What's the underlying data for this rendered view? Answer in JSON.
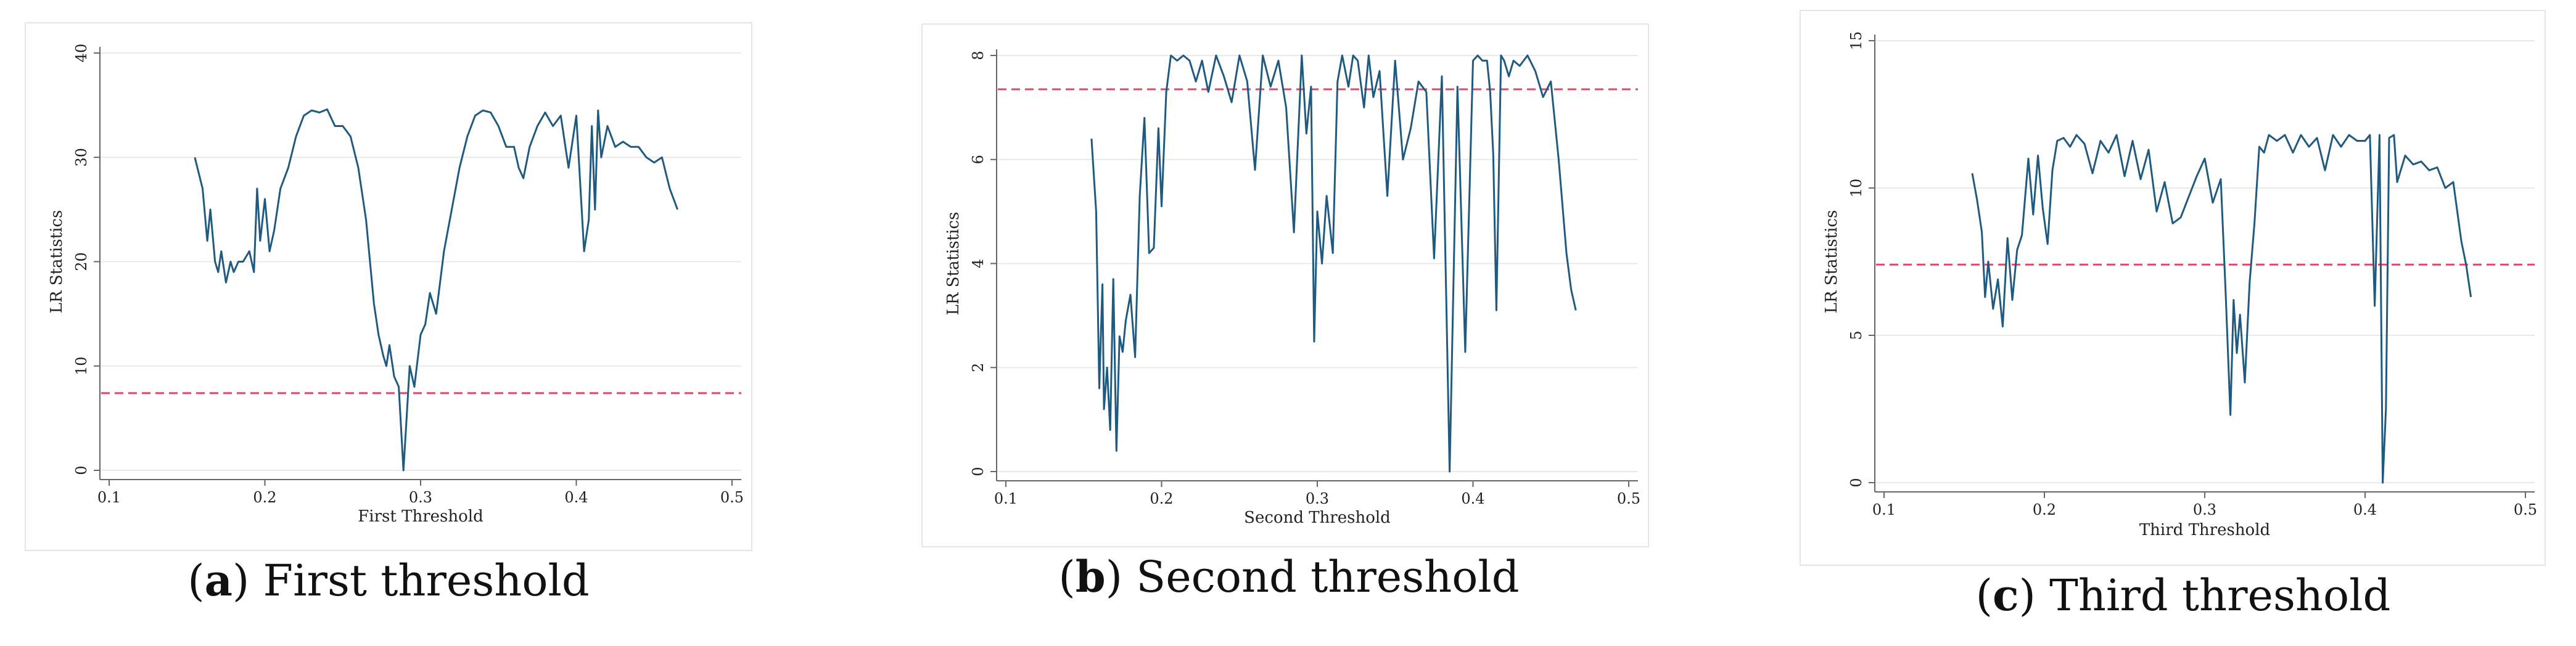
{
  "captions": [
    {
      "letter": "a",
      "text": ") First threshold",
      "open": "("
    },
    {
      "letter": "b",
      "text": ") Second threshold",
      "open": "("
    },
    {
      "letter": "c",
      "text": ") Third threshold",
      "open": "("
    }
  ],
  "colors": {
    "line": "#1f5a80",
    "critical": "#e8456b",
    "grid": "#e9e9e9",
    "axis": "#666666"
  },
  "chart_data": [
    {
      "type": "line",
      "title": "",
      "xlabel": "First Threshold",
      "ylabel": "LR Statistics",
      "xlim": [
        0.1,
        0.5
      ],
      "ylim": [
        0,
        40
      ],
      "xticks": [
        0.1,
        0.2,
        0.3,
        0.4,
        0.5
      ],
      "yticks": [
        0,
        10,
        20,
        30,
        40
      ],
      "critical_value": 7.4,
      "series": [
        {
          "x": [
            0.155,
            0.16,
            0.163,
            0.165,
            0.168,
            0.17,
            0.172,
            0.175,
            0.178,
            0.18,
            0.183,
            0.186,
            0.19,
            0.193,
            0.195,
            0.197,
            0.2,
            0.203,
            0.206,
            0.21,
            0.215,
            0.22,
            0.225,
            0.23,
            0.235,
            0.24,
            0.245,
            0.25,
            0.255,
            0.26,
            0.265,
            0.27,
            0.273,
            0.276,
            0.278,
            0.28,
            0.283,
            0.286,
            0.289,
            0.291,
            0.293,
            0.296,
            0.3,
            0.303,
            0.306,
            0.31,
            0.315,
            0.32,
            0.325,
            0.33,
            0.335,
            0.34,
            0.345,
            0.35,
            0.355,
            0.36,
            0.363,
            0.366,
            0.37,
            0.375,
            0.38,
            0.385,
            0.39,
            0.395,
            0.4,
            0.405,
            0.408,
            0.41,
            0.412,
            0.414,
            0.416,
            0.42,
            0.425,
            0.43,
            0.435,
            0.44,
            0.445,
            0.45,
            0.455,
            0.46,
            0.465
          ],
          "y": [
            30,
            27,
            22,
            25,
            20,
            19,
            21,
            18,
            20,
            19,
            20,
            20,
            21,
            19,
            27,
            22,
            26,
            21,
            23,
            27,
            29,
            32,
            34,
            34.5,
            34.3,
            34.6,
            33,
            33,
            32,
            29,
            24,
            16,
            13,
            11,
            10,
            12,
            9,
            8,
            0,
            5,
            10,
            8,
            13,
            14,
            17,
            15,
            21,
            25,
            29,
            32,
            34,
            34.5,
            34.3,
            33,
            31,
            31,
            29,
            28,
            31,
            33,
            34.3,
            33,
            34,
            29,
            34,
            21,
            24,
            33,
            25,
            34.5,
            30,
            33,
            31,
            31.5,
            31,
            31,
            30,
            29.5,
            30,
            27,
            25
          ]
        }
      ]
    },
    {
      "type": "line",
      "title": "",
      "xlabel": "Second Threshold",
      "ylabel": "LR Statistics",
      "xlim": [
        0.1,
        0.5
      ],
      "ylim": [
        0,
        8
      ],
      "xticks": [
        0.1,
        0.2,
        0.3,
        0.4,
        0.5
      ],
      "yticks": [
        0,
        2,
        4,
        6,
        8
      ],
      "critical_value": 7.35,
      "series": [
        {
          "x": [
            0.155,
            0.158,
            0.16,
            0.162,
            0.163,
            0.165,
            0.167,
            0.169,
            0.171,
            0.173,
            0.175,
            0.177,
            0.18,
            0.183,
            0.186,
            0.189,
            0.192,
            0.195,
            0.198,
            0.2,
            0.203,
            0.206,
            0.21,
            0.214,
            0.218,
            0.222,
            0.226,
            0.23,
            0.235,
            0.24,
            0.245,
            0.25,
            0.255,
            0.26,
            0.265,
            0.27,
            0.275,
            0.28,
            0.285,
            0.29,
            0.293,
            0.296,
            0.298,
            0.3,
            0.303,
            0.306,
            0.31,
            0.313,
            0.316,
            0.32,
            0.323,
            0.326,
            0.33,
            0.333,
            0.336,
            0.34,
            0.345,
            0.35,
            0.355,
            0.36,
            0.365,
            0.37,
            0.375,
            0.38,
            0.385,
            0.39,
            0.395,
            0.4,
            0.403,
            0.406,
            0.409,
            0.411,
            0.413,
            0.415,
            0.418,
            0.42,
            0.423,
            0.426,
            0.43,
            0.435,
            0.44,
            0.445,
            0.45,
            0.455,
            0.46,
            0.463,
            0.466
          ],
          "y": [
            6.4,
            5,
            1.6,
            3.6,
            1.2,
            2,
            0.8,
            3.7,
            0.4,
            2.6,
            2.3,
            2.9,
            3.4,
            2.2,
            5.3,
            6.8,
            4.2,
            4.3,
            6.6,
            5.1,
            7.3,
            8.0,
            7.9,
            8.0,
            7.9,
            7.5,
            7.9,
            7.3,
            8.0,
            7.6,
            7.1,
            8.0,
            7.5,
            5.8,
            8.0,
            7.4,
            7.9,
            7.0,
            4.6,
            8.0,
            6.5,
            7.4,
            2.5,
            5.0,
            4.0,
            5.3,
            4.2,
            7.5,
            8.0,
            7.4,
            8.0,
            7.9,
            7.0,
            8.0,
            7.2,
            7.7,
            5.3,
            7.9,
            6.0,
            6.6,
            7.5,
            7.3,
            4.1,
            7.6,
            0.0,
            7.4,
            2.3,
            7.9,
            8.0,
            7.9,
            7.9,
            7.3,
            6.1,
            3.1,
            8.0,
            7.9,
            7.6,
            7.9,
            7.8,
            8.0,
            7.7,
            7.2,
            7.5,
            6.0,
            4.2,
            3.5,
            3.1
          ]
        }
      ]
    },
    {
      "type": "line",
      "title": "",
      "xlabel": "Third Threshold",
      "ylabel": "LR Statistics",
      "xlim": [
        0.1,
        0.5
      ],
      "ylim": [
        0,
        15
      ],
      "xticks": [
        0.1,
        0.2,
        0.3,
        0.4,
        0.5
      ],
      "yticks": [
        0,
        5,
        10,
        15
      ],
      "critical_value": 7.4,
      "series": [
        {
          "x": [
            0.155,
            0.158,
            0.161,
            0.163,
            0.165,
            0.168,
            0.171,
            0.174,
            0.177,
            0.18,
            0.183,
            0.186,
            0.19,
            0.193,
            0.196,
            0.199,
            0.202,
            0.205,
            0.208,
            0.212,
            0.216,
            0.22,
            0.225,
            0.23,
            0.235,
            0.24,
            0.245,
            0.25,
            0.255,
            0.26,
            0.265,
            0.27,
            0.275,
            0.28,
            0.285,
            0.29,
            0.295,
            0.3,
            0.305,
            0.31,
            0.313,
            0.316,
            0.318,
            0.32,
            0.322,
            0.325,
            0.328,
            0.331,
            0.334,
            0.337,
            0.34,
            0.345,
            0.35,
            0.355,
            0.36,
            0.365,
            0.37,
            0.375,
            0.38,
            0.385,
            0.39,
            0.395,
            0.4,
            0.403,
            0.406,
            0.409,
            0.411,
            0.413,
            0.415,
            0.418,
            0.42,
            0.425,
            0.43,
            0.435,
            0.44,
            0.445,
            0.45,
            0.455,
            0.46,
            0.463,
            0.466
          ],
          "y": [
            10.5,
            9.6,
            8.5,
            6.3,
            7.5,
            5.9,
            6.9,
            5.3,
            8.3,
            6.2,
            7.9,
            8.4,
            11.0,
            9.1,
            11.1,
            9.3,
            8.1,
            10.6,
            11.6,
            11.7,
            11.4,
            11.8,
            11.5,
            10.5,
            11.6,
            11.2,
            11.8,
            10.4,
            11.6,
            10.3,
            11.3,
            9.2,
            10.2,
            8.8,
            9.0,
            9.7,
            10.4,
            11.0,
            9.5,
            10.3,
            6.5,
            2.3,
            6.2,
            4.4,
            5.7,
            3.4,
            6.8,
            8.8,
            11.4,
            11.2,
            11.8,
            11.6,
            11.8,
            11.2,
            11.8,
            11.4,
            11.7,
            10.6,
            11.8,
            11.4,
            11.8,
            11.6,
            11.6,
            11.8,
            6.0,
            11.8,
            0.0,
            2.5,
            11.7,
            11.8,
            10.2,
            11.1,
            10.8,
            10.9,
            10.6,
            10.7,
            10.0,
            10.2,
            8.2,
            7.4,
            6.3
          ]
        }
      ]
    }
  ]
}
